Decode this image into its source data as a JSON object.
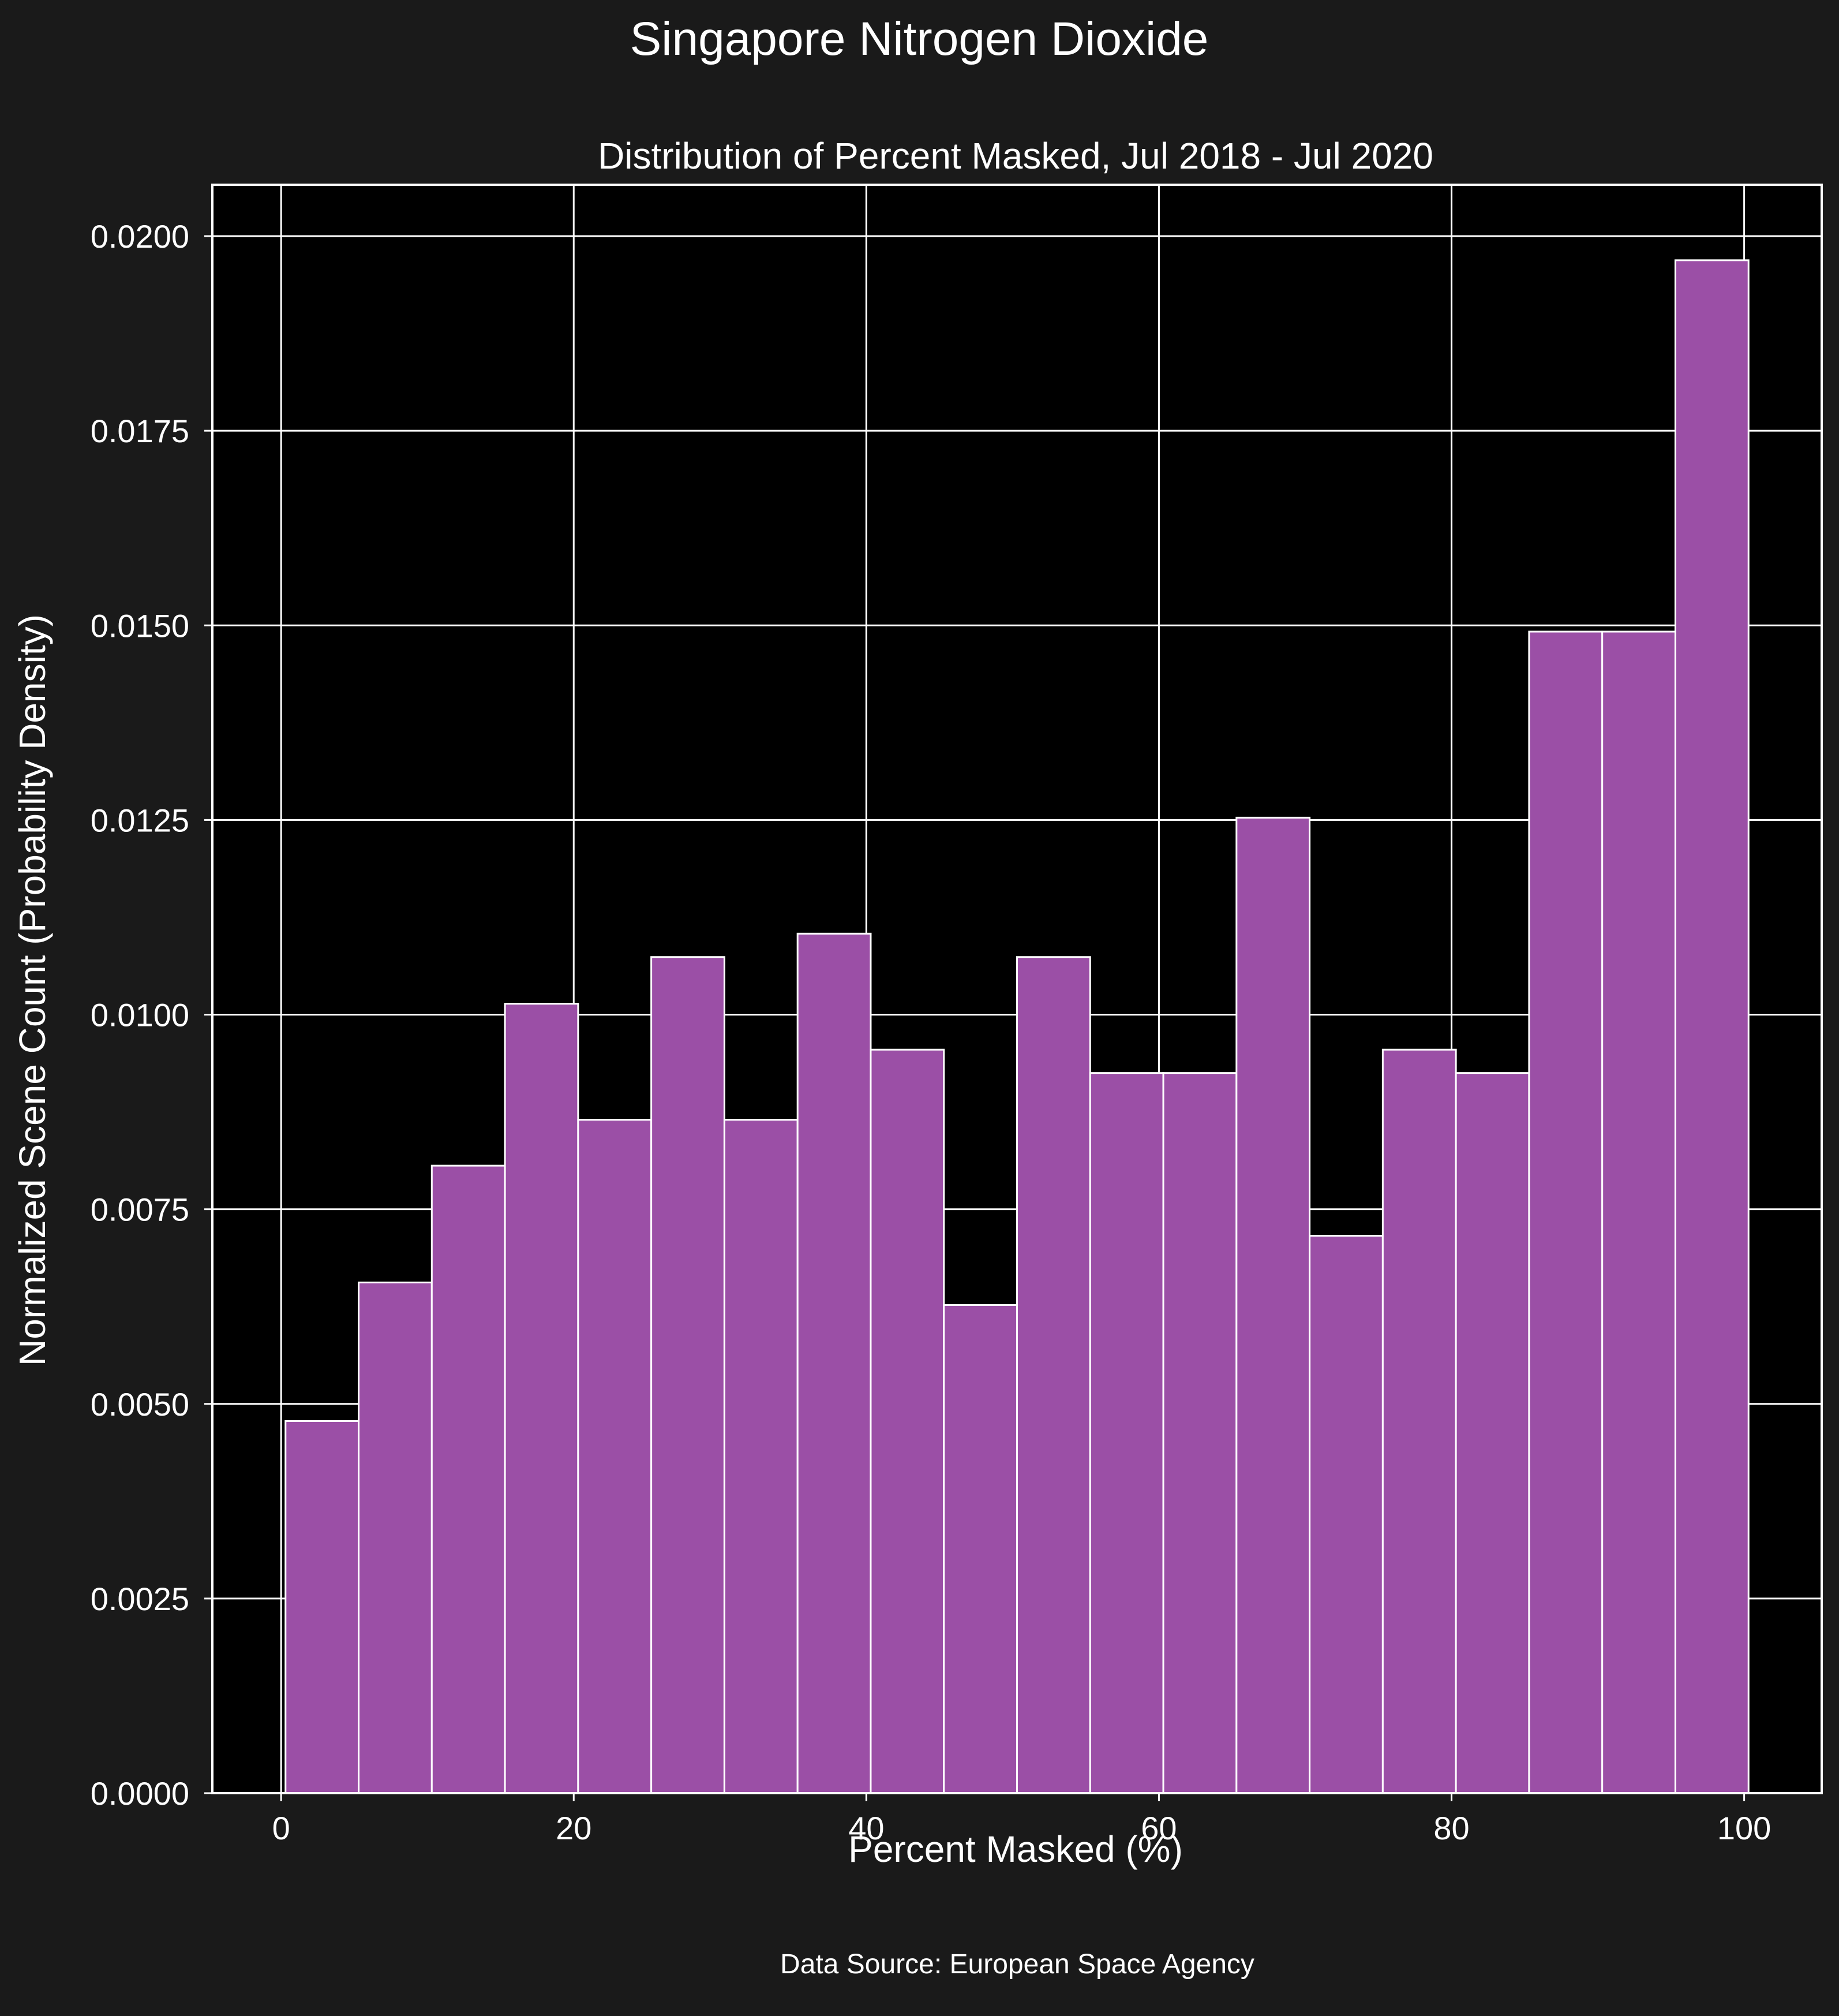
{
  "figure": {
    "suptitle": "Singapore Nitrogen Dioxide",
    "source": "Data Source: European Space Agency"
  },
  "colors": {
    "background": "#1a1a1a",
    "plot_background": "#000000",
    "bar_fill": "#9b4fa6",
    "bar_edge": "#ffffff",
    "grid": "#ffffff",
    "text": "#ffffff"
  },
  "chart_data": {
    "type": "bar",
    "title": "Distribution of Percent Masked, Jul 2018 - Jul 2020",
    "xlabel": "Percent Masked (%)",
    "ylabel": "Normalized Scene Count (Probability Density)",
    "bin_edges": [
      0.3,
      5.3,
      10.3,
      15.3,
      20.3,
      25.3,
      30.3,
      35.3,
      40.3,
      45.3,
      50.3,
      55.3,
      60.3,
      65.3,
      70.3,
      75.3,
      80.3,
      85.3,
      90.3,
      95.3,
      100.3
    ],
    "values": [
      0.00478,
      0.00656,
      0.00806,
      0.01014,
      0.00865,
      0.01074,
      0.00865,
      0.01104,
      0.00955,
      0.00627,
      0.01074,
      0.00925,
      0.00925,
      0.01253,
      0.00716,
      0.00955,
      0.00925,
      0.01492,
      0.01492,
      0.01969
    ],
    "xlim": [
      -4.7,
      105.3
    ],
    "ylim": [
      0,
      0.02066
    ],
    "xticks": [
      0,
      20,
      40,
      60,
      80,
      100
    ],
    "xtick_labels": [
      "0",
      "20",
      "40",
      "60",
      "80",
      "100"
    ],
    "yticks": [
      0,
      0.0025,
      0.005,
      0.0075,
      0.01,
      0.0125,
      0.015,
      0.0175,
      0.02
    ],
    "ytick_labels": [
      "0.0000",
      "0.0025",
      "0.0050",
      "0.0075",
      "0.0100",
      "0.0125",
      "0.0150",
      "0.0175",
      "0.0200"
    ],
    "grid": true,
    "legend": false
  }
}
